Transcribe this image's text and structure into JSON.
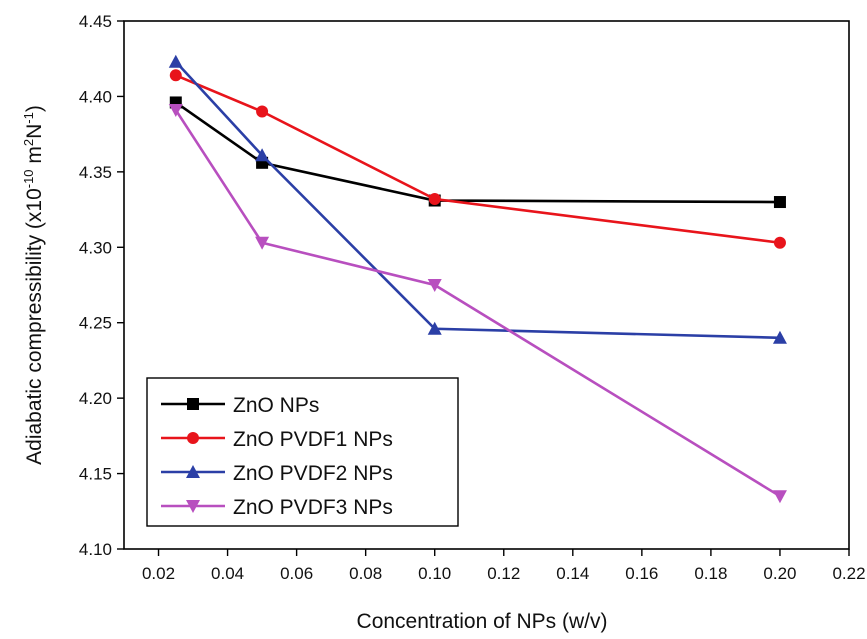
{
  "chart_data": {
    "type": "line",
    "title": "",
    "xlabel": "Concentration of NPs (w/v)",
    "ylabel": {
      "prefix": "Adiabatic compressibility (x10",
      "exp1": "-10",
      "mid": " m",
      "exp2": "2",
      "unit2": "N",
      "exp3": "-1",
      "suffix": ")"
    },
    "xlim": [
      0.01,
      0.22
    ],
    "ylim": [
      4.1,
      4.45
    ],
    "x_ticks": [
      "0.02",
      "0.04",
      "0.06",
      "0.08",
      "0.10",
      "0.12",
      "0.14",
      "0.16",
      "0.18",
      "0.20",
      "0.22"
    ],
    "y_ticks": [
      "4.10",
      "4.15",
      "4.20",
      "4.25",
      "4.30",
      "4.35",
      "4.40",
      "4.45"
    ],
    "legend_position": "bottom-left",
    "grid": false,
    "series": [
      {
        "name": "ZnO NPs",
        "color": "#000000",
        "marker": "square",
        "x": [
          0.025,
          0.05,
          0.1,
          0.2
        ],
        "y": [
          4.396,
          4.356,
          4.331,
          4.33
        ]
      },
      {
        "name": "ZnO PVDF1 NPs",
        "color": "#e8141b",
        "marker": "circle",
        "x": [
          0.025,
          0.05,
          0.1,
          0.2
        ],
        "y": [
          4.414,
          4.39,
          4.332,
          4.303
        ]
      },
      {
        "name": "ZnO PVDF2 NPs",
        "color": "#2b3fa6",
        "marker": "triangle-up",
        "x": [
          0.025,
          0.05,
          0.1,
          0.2
        ],
        "y": [
          4.423,
          4.361,
          4.246,
          4.24
        ]
      },
      {
        "name": "ZnO PVDF3 NPs",
        "color": "#b84fbf",
        "marker": "triangle-down",
        "x": [
          0.025,
          0.05,
          0.1,
          0.2
        ],
        "y": [
          4.391,
          4.303,
          4.275,
          4.135
        ]
      }
    ]
  }
}
